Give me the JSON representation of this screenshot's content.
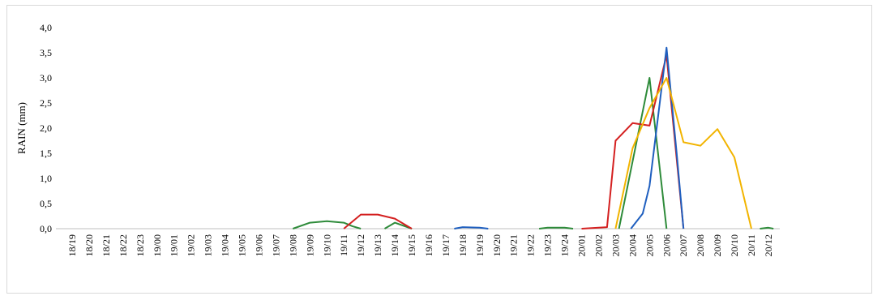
{
  "chart_data": {
    "type": "line",
    "title": "",
    "xlabel": "",
    "ylabel": "RAIN (mm)",
    "ylim": [
      0,
      4
    ],
    "yticks": [
      "0,0",
      "0,5",
      "1,0",
      "1,5",
      "2,0",
      "2,5",
      "3,0",
      "3,5",
      "4,0"
    ],
    "grid": false,
    "legend": "none",
    "categories": [
      "18/19",
      "18/20",
      "18/21",
      "18/22",
      "18/23",
      "19/00",
      "19/01",
      "19/02",
      "19/03",
      "19/04",
      "19/05",
      "19/06",
      "19/07",
      "19/08",
      "19/09",
      "19/10",
      "19/11",
      "19/12",
      "19/13",
      "19/14",
      "19/15",
      "19/16",
      "19/17",
      "19/18",
      "19/19",
      "19/20",
      "19/21",
      "19/22",
      "19/23",
      "19/24",
      "20/01",
      "20/02",
      "20/03",
      "20/04",
      "20/05",
      "20/06",
      "20/07",
      "20/08",
      "20/09",
      "20/10",
      "20/11",
      "20/12"
    ],
    "series": [
      {
        "color": "#2e8b3a",
        "points": [
          [
            13,
            0
          ],
          [
            14,
            0.12
          ],
          [
            15,
            0.15
          ],
          [
            16,
            0.12
          ],
          [
            16.5,
            0.05
          ],
          [
            17,
            0
          ],
          [
            null,
            null
          ],
          [
            18.4,
            0
          ],
          [
            19,
            0.12
          ],
          [
            20,
            0
          ],
          [
            null,
            null
          ],
          [
            27.5,
            0
          ],
          [
            28,
            0.02
          ],
          [
            29,
            0.02
          ],
          [
            29.5,
            0
          ],
          [
            null,
            null
          ],
          [
            32.2,
            0
          ],
          [
            34,
            3.0
          ],
          [
            35,
            0
          ],
          [
            null,
            null
          ],
          [
            40.5,
            0
          ],
          [
            41,
            0.02
          ],
          [
            41.3,
            0
          ]
        ]
      },
      {
        "color": "#d42020",
        "points": [
          [
            16,
            0
          ],
          [
            17,
            0.28
          ],
          [
            18,
            0.28
          ],
          [
            19,
            0.2
          ],
          [
            20,
            0
          ],
          [
            null,
            null
          ],
          [
            30,
            0
          ],
          [
            31,
            0.02
          ],
          [
            31.5,
            0.03
          ],
          [
            32,
            1.75
          ],
          [
            33,
            2.1
          ],
          [
            34,
            2.05
          ],
          [
            35,
            3.45
          ],
          [
            36,
            0
          ]
        ]
      },
      {
        "color": "#1f5fbf",
        "points": [
          [
            22.5,
            0
          ],
          [
            23,
            0.03
          ],
          [
            24,
            0.02
          ],
          [
            24.5,
            0
          ],
          [
            null,
            null
          ],
          [
            32.9,
            0
          ],
          [
            33.6,
            0.3
          ],
          [
            34,
            0.85
          ],
          [
            35,
            3.6
          ],
          [
            35.6,
            1.5
          ],
          [
            36,
            0
          ]
        ]
      },
      {
        "color": "#f2b400",
        "points": [
          [
            32,
            0
          ],
          [
            33,
            1.6
          ],
          [
            34,
            2.4
          ],
          [
            35,
            3.0
          ],
          [
            36,
            1.72
          ],
          [
            37,
            1.65
          ],
          [
            38,
            1.98
          ],
          [
            39,
            1.42
          ],
          [
            40,
            0
          ]
        ]
      }
    ]
  }
}
